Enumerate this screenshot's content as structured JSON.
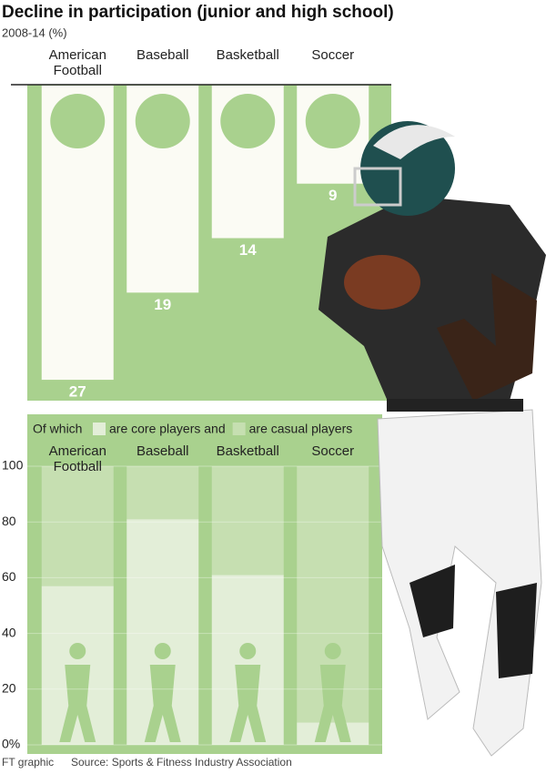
{
  "chart_data": [
    {
      "type": "hanging_bar",
      "title": "Decline in participation (junior and high school)",
      "subtitle": "2008-14 (%)",
      "categories": [
        "American Football",
        "Baseball",
        "Basketball",
        "Soccer"
      ],
      "values": [
        27,
        19,
        14,
        9
      ],
      "color": "#fbfbf4",
      "background": "#a9d18e",
      "ylim": [
        0,
        29
      ]
    },
    {
      "type": "stacked_bar",
      "legend_prefix": "Of which",
      "categories": [
        "American Football",
        "Baseball",
        "Basketball",
        "Soccer"
      ],
      "series": [
        {
          "name": "are core players and",
          "color": "#e3eed8",
          "values": [
            57,
            81,
            61,
            8
          ]
        },
        {
          "name": "are casual players",
          "color": "#c6dfb1",
          "values": [
            43,
            19,
            39,
            92
          ]
        }
      ],
      "background": "#a9d18e",
      "ylim": [
        0,
        100
      ],
      "yticks": [
        {
          "value": 0,
          "label": "0%"
        },
        20,
        40,
        60,
        80,
        100
      ],
      "grid": true
    }
  ],
  "footer": {
    "credit": "FT graphic",
    "source": "Source: Sports & Fitness Industry Association"
  }
}
